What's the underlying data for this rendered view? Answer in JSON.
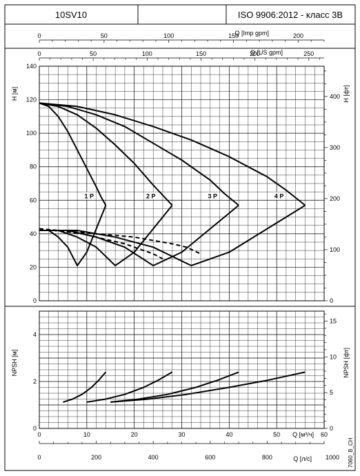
{
  "header": {
    "model": "10SV10",
    "standard": "ISO 9906:2012 - класс 3B"
  },
  "chart_data": [
    {
      "type": "line",
      "id": "head",
      "ylabel_left": "H [м]",
      "ylabel_right": "H [фт]",
      "ylim": [
        0,
        140
      ],
      "xlim": [
        0,
        60
      ],
      "grid": true,
      "top_axes": [
        {
          "label": "Q [Imp gpm]",
          "ticks": [
            "0",
            "50",
            "100",
            "150",
            "200"
          ],
          "values": [
            0,
            50,
            100,
            150,
            200
          ],
          "max": 220
        },
        {
          "label": "Q [US gpm]",
          "ticks": [
            "0",
            "50",
            "100",
            "150",
            "200",
            "250"
          ],
          "values": [
            0,
            50,
            100,
            150,
            200,
            250
          ],
          "max": 264.2
        }
      ],
      "left_ticks": [
        "0",
        "20",
        "40",
        "60",
        "80",
        "100",
        "120",
        "140"
      ],
      "left_tick_values": [
        0,
        20,
        40,
        60,
        80,
        100,
        120,
        140
      ],
      "right_ticks": [
        "0",
        "100",
        "200",
        "300",
        "400"
      ],
      "right_tick_values": [
        0,
        100,
        200,
        300,
        400
      ],
      "right_scale_max": 459.3,
      "series": [
        {
          "name": "1 P",
          "kind": "head",
          "x": [
            0,
            2,
            4,
            6,
            8,
            10,
            12,
            13,
            14
          ],
          "y": [
            118,
            116,
            110,
            101,
            90,
            79,
            68,
            62,
            57
          ]
        },
        {
          "name": "2 P",
          "kind": "head",
          "x": [
            0,
            4,
            8,
            12,
            16,
            20,
            24,
            26,
            28
          ],
          "y": [
            118,
            116,
            111,
            103,
            93,
            82,
            69,
            63,
            57
          ]
        },
        {
          "name": "3 P",
          "kind": "head",
          "x": [
            0,
            6,
            12,
            18,
            24,
            30,
            36,
            39,
            42
          ],
          "y": [
            118,
            116,
            111,
            104,
            94,
            84,
            72,
            64,
            57
          ]
        },
        {
          "name": "4 P",
          "kind": "head",
          "x": [
            0,
            8,
            16,
            24,
            32,
            40,
            48,
            52,
            56
          ],
          "y": [
            118,
            116,
            111,
            104,
            96,
            86,
            74,
            66,
            57
          ]
        },
        {
          "kind": "efficiency",
          "x": [
            0,
            2,
            4,
            6,
            8,
            10,
            12,
            14
          ],
          "y": [
            42,
            42,
            38,
            32,
            21,
            29,
            43,
            57
          ]
        },
        {
          "kind": "efficiency",
          "x": [
            0,
            4,
            8,
            12,
            16,
            20,
            24,
            28
          ],
          "y": [
            42,
            42,
            38,
            32,
            21,
            29,
            43,
            57
          ]
        },
        {
          "kind": "efficiency",
          "x": [
            0,
            6,
            12,
            18,
            24,
            30,
            36,
            42
          ],
          "y": [
            42,
            42,
            38,
            32,
            21,
            29,
            43,
            57
          ]
        },
        {
          "kind": "efficiency",
          "x": [
            0,
            8,
            16,
            24,
            32,
            40,
            48,
            56
          ],
          "y": [
            42,
            42,
            38,
            32,
            21,
            29,
            43,
            57
          ]
        },
        {
          "kind": "dashed",
          "x": [
            0,
            3,
            6,
            9,
            12,
            15,
            18,
            21,
            24,
            26
          ],
          "y": [
            43,
            42,
            41,
            40,
            38,
            36,
            34,
            31,
            28,
            25
          ]
        },
        {
          "kind": "dashed",
          "x": [
            0,
            4,
            8,
            12,
            16,
            20,
            24,
            28,
            31,
            34
          ],
          "y": [
            43,
            42,
            41,
            40,
            39,
            38,
            36,
            34,
            32,
            28
          ]
        }
      ],
      "curve_labels": [
        {
          "text": "1 P",
          "x": 10.5,
          "y": 62
        },
        {
          "text": "2 P",
          "x": 23.5,
          "y": 62
        },
        {
          "text": "3 P",
          "x": 36.5,
          "y": 62
        },
        {
          "text": "4 P",
          "x": 50.5,
          "y": 62
        }
      ]
    },
    {
      "type": "line",
      "id": "npsh",
      "ylabel_left": "NPSH [м]",
      "ylabel_right": "NPSH [фт]",
      "xlabel": "Q [м³/ч]",
      "xlabel2": "Q [л/с]",
      "ylim": [
        0,
        5
      ],
      "xlim": [
        0,
        60
      ],
      "grid": true,
      "left_ticks": [
        "0",
        "2",
        "4"
      ],
      "left_tick_values": [
        0,
        2,
        4
      ],
      "right_ticks": [
        "0",
        "5",
        "10",
        "15"
      ],
      "right_tick_values": [
        0,
        5,
        10,
        15
      ],
      "right_scale_max": 16.4,
      "x_ticks": [
        "0",
        "10",
        "20",
        "30",
        "40",
        "50"
      ],
      "x_tick_values": [
        0,
        10,
        20,
        30,
        40,
        50
      ],
      "x_end_label": "60",
      "ls_ticks": [
        "0",
        "200",
        "400",
        "600",
        "800",
        "1000"
      ],
      "ls_tick_values": [
        0,
        200,
        400,
        600,
        800,
        1000
      ],
      "ls_scale_max": 1000,
      "series": [
        {
          "kind": "npsh",
          "x": [
            5,
            7,
            9,
            11,
            12.5,
            14
          ],
          "y": [
            1.12,
            1.25,
            1.45,
            1.75,
            2.05,
            2.4
          ]
        },
        {
          "kind": "npsh",
          "x": [
            10,
            14,
            18,
            22,
            25,
            28
          ],
          "y": [
            1.12,
            1.25,
            1.45,
            1.75,
            2.05,
            2.4
          ]
        },
        {
          "kind": "npsh",
          "x": [
            15,
            21,
            27,
            33,
            37.5,
            42
          ],
          "y": [
            1.12,
            1.25,
            1.45,
            1.75,
            2.05,
            2.4
          ]
        },
        {
          "kind": "npsh",
          "x": [
            15,
            23,
            31,
            40,
            48,
            56
          ],
          "y": [
            1.12,
            1.25,
            1.45,
            1.75,
            2.05,
            2.4
          ]
        }
      ]
    }
  ],
  "footer": {
    "code": "7060_B_CH"
  }
}
